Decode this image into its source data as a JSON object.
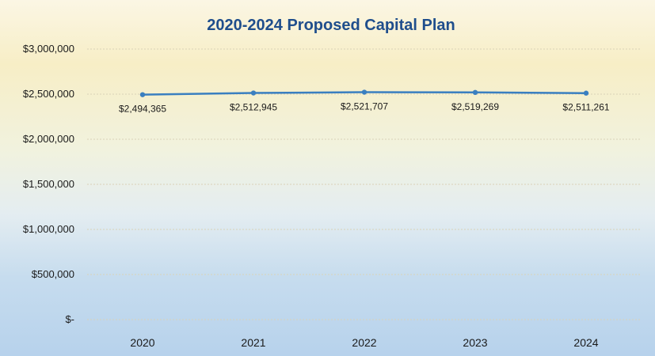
{
  "chart_data": {
    "type": "line",
    "title": "2020-2024 Proposed Capital Plan",
    "categories": [
      "2020",
      "2021",
      "2022",
      "2023",
      "2024"
    ],
    "series": [
      {
        "values": [
          2494365,
          2512945,
          2521707,
          2519269,
          2511261
        ]
      }
    ],
    "data_labels": [
      "$2,494,365",
      "$2,512,945",
      "$2,521,707",
      "$2,519,269",
      "$2,511,261"
    ],
    "y_ticks": [
      0,
      500000,
      1000000,
      1500000,
      2000000,
      2500000,
      3000000
    ],
    "y_tick_labels": [
      "$-",
      "$500,000",
      "$1,000,000",
      "$1,500,000",
      "$2,000,000",
      "$2,500,000",
      "$3,000,000"
    ],
    "ylim": [
      0,
      3000000
    ],
    "grid": true,
    "legend": "none",
    "colors": {
      "line": "#3a7fc0",
      "title": "#1f4e8c",
      "grid": "#d9d2b8"
    }
  }
}
